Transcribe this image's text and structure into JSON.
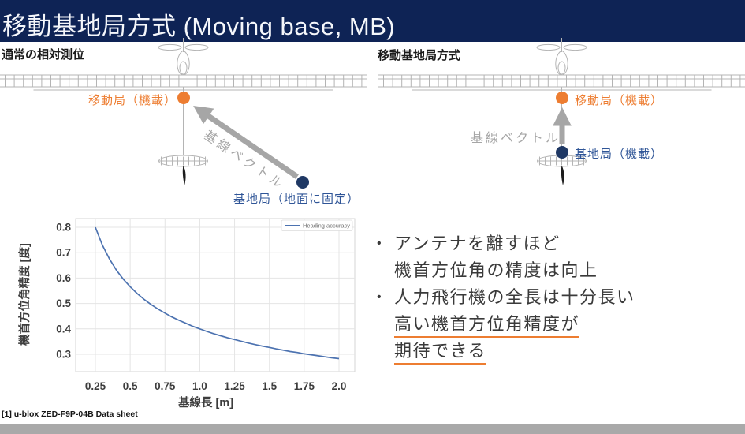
{
  "slide": {
    "title": "移動基地局方式 (Moving base, MB)",
    "footnote": "[1] u-blox ZED-F9P-04B Data sheet"
  },
  "colors": {
    "title_bar": "#0e2355",
    "rover_orange": "#ed7d31",
    "base_dot_navy": "#1f3864",
    "base_label_blue": "#2f5597",
    "arrow_gray": "#a6a6a6",
    "chart_line_blue": "#4c72b0",
    "underline_orange": "#ed7d31",
    "footer_bar_gray": "#a9a9a9",
    "plane_line_gray": "#b4b4b4"
  },
  "diagram_left": {
    "heading": "通常の相対測位",
    "rover_label": "移動局（機載）",
    "baseline_label": "基線ベクトル",
    "base_label": "基地局（地面に固定）"
  },
  "diagram_right": {
    "heading": "移動基地局方式",
    "rover_label": "移動局（機載）",
    "baseline_label": "基線ベクトル",
    "base_label": "基地局（機載）"
  },
  "bullets": {
    "marker": "•",
    "items": [
      {
        "lines": [
          {
            "text": "アンテナを離すほど",
            "underline": false
          },
          {
            "text": "機首方位角の精度は向上",
            "underline": false
          }
        ]
      },
      {
        "lines": [
          {
            "text": "人力飛行機の全長は十分長い",
            "underline": false
          },
          {
            "text": "高い機首方位角精度が",
            "underline": true
          },
          {
            "text": "期待できる",
            "underline": true
          }
        ]
      }
    ]
  },
  "chart_data": {
    "type": "line",
    "title": "",
    "xlabel": "基線長 [m]",
    "ylabel": "機首方位角精度 [度]",
    "x_tick_labels": [
      "0.25",
      "0.5",
      "0.75",
      "1.0",
      "1.25",
      "1.5",
      "1.75",
      "2.0"
    ],
    "x_ticks": [
      0.25,
      0.5,
      0.75,
      1.0,
      1.25,
      1.5,
      1.75,
      2.0
    ],
    "y_tick_labels": [
      "0.3",
      "0.4",
      "0.5",
      "0.6",
      "0.7",
      "0.8"
    ],
    "y_ticks": [
      0.3,
      0.4,
      0.5,
      0.6,
      0.7,
      0.8
    ],
    "xlim": [
      0.11,
      2.11
    ],
    "ylim": [
      0.255,
      0.83
    ],
    "grid": true,
    "legend_position": "upper right",
    "series": [
      {
        "name": "Heading accuracy",
        "x": [
          0.25,
          0.3,
          0.35,
          0.4,
          0.45,
          0.5,
          0.55,
          0.6,
          0.65,
          0.7,
          0.75,
          0.8,
          0.85,
          0.9,
          0.95,
          1.0,
          1.05,
          1.1,
          1.15,
          1.2,
          1.25,
          1.3,
          1.35,
          1.4,
          1.45,
          1.5,
          1.55,
          1.6,
          1.65,
          1.7,
          1.75,
          1.8,
          1.85,
          1.9,
          1.95,
          2.0
        ],
        "y": [
          0.8,
          0.73,
          0.676,
          0.632,
          0.596,
          0.566,
          0.539,
          0.516,
          0.496,
          0.478,
          0.462,
          0.447,
          0.434,
          0.422,
          0.41,
          0.4,
          0.39,
          0.381,
          0.373,
          0.365,
          0.358,
          0.351,
          0.344,
          0.338,
          0.332,
          0.327,
          0.321,
          0.316,
          0.311,
          0.307,
          0.302,
          0.298,
          0.294,
          0.29,
          0.286,
          0.283
        ]
      }
    ]
  }
}
